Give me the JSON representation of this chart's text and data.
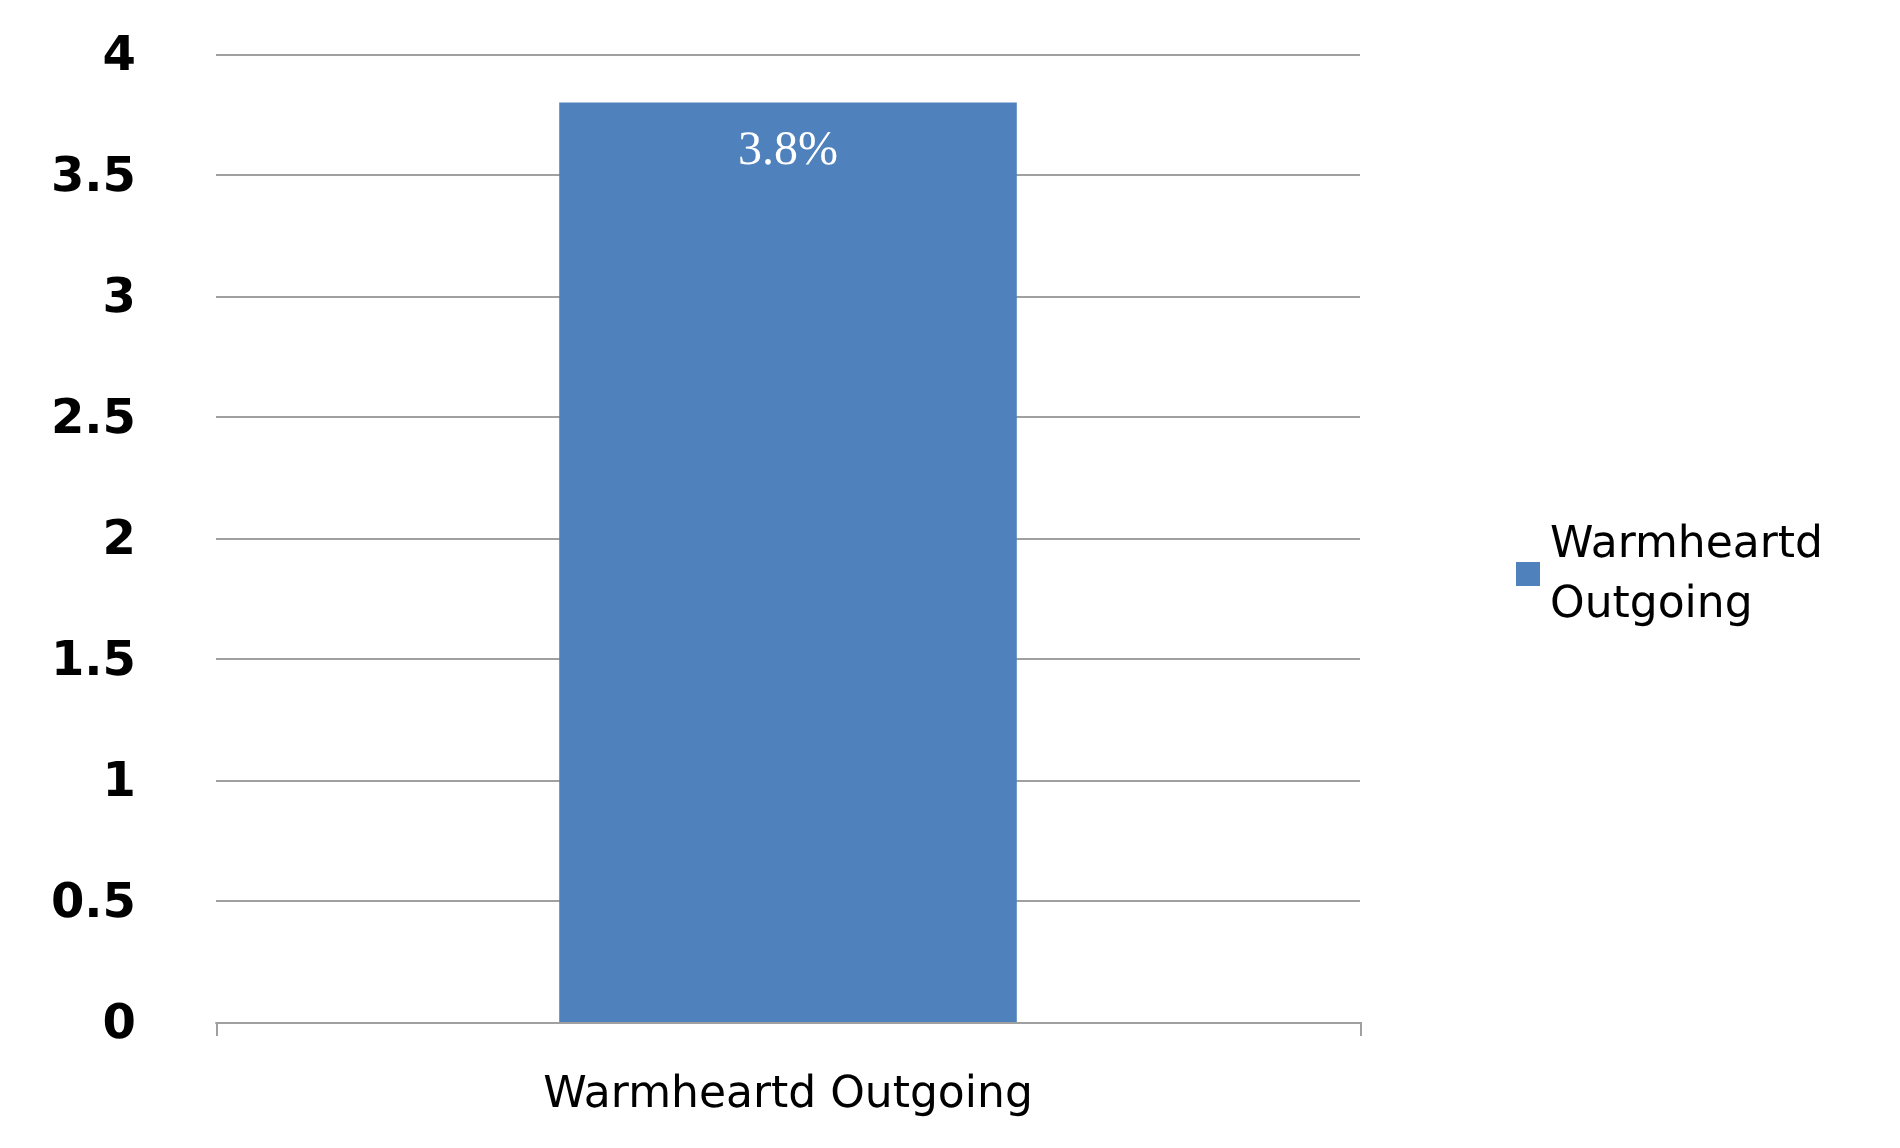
{
  "chart_data": {
    "type": "bar",
    "categories": [
      "Warmheartd Outgoing"
    ],
    "series": [
      {
        "name": "Warmheartd Outgoing",
        "color": "#4f81bd",
        "values": [
          3.8
        ],
        "value_labels": [
          "3.8%"
        ]
      }
    ],
    "ylim": [
      0,
      4
    ],
    "yticks": [
      0,
      0.5,
      1,
      1.5,
      2,
      2.5,
      3,
      3.5,
      4
    ],
    "grid": "y",
    "legend": "right"
  }
}
